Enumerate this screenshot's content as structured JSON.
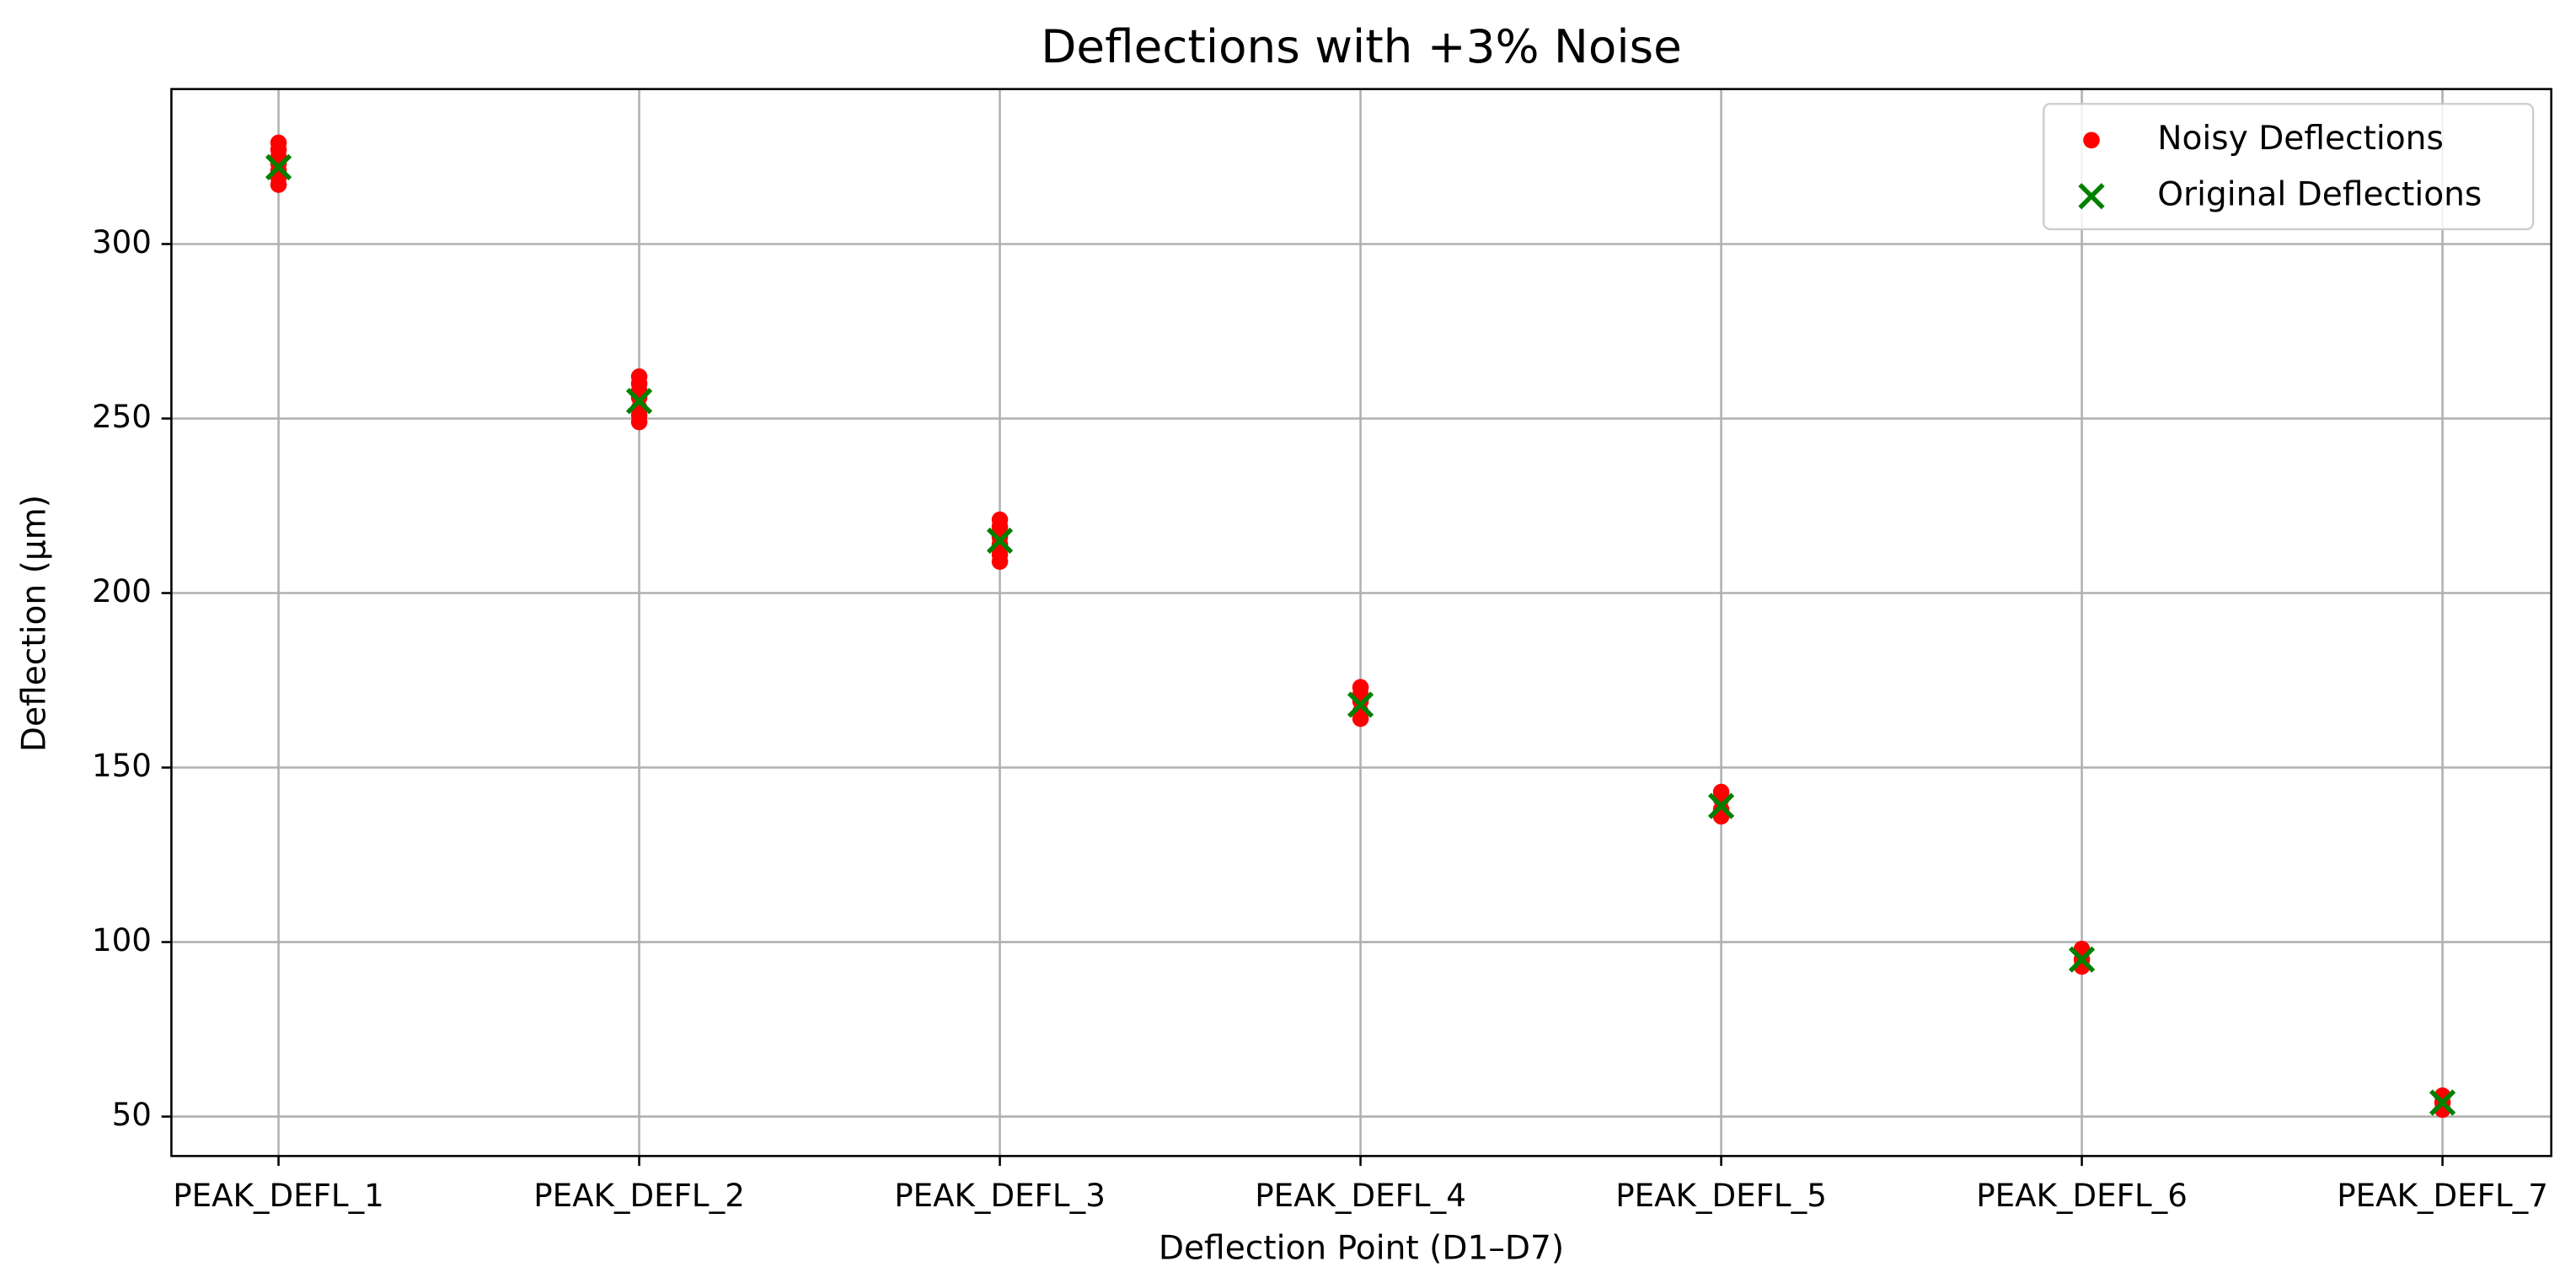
{
  "chart_data": {
    "type": "scatter",
    "title": "Deflections with +3% Noise",
    "x_label": "Deflection Point (D1–D7)",
    "y_label": "Deflection (µm)",
    "categories": [
      "PEAK_DEFL_1",
      "PEAK_DEFL_2",
      "PEAK_DEFL_3",
      "PEAK_DEFL_4",
      "PEAK_DEFL_5",
      "PEAK_DEFL_6",
      "PEAK_DEFL_7"
    ],
    "ylim": [
      38.7,
      344.4
    ],
    "yticks": [
      50,
      100,
      150,
      200,
      250,
      300
    ],
    "grid": true,
    "legend": "upper right",
    "series": [
      {
        "name": "Noisy Deflections",
        "color": "#ff0000",
        "marker": "o",
        "x": [
          "PEAK_DEFL_1",
          "PEAK_DEFL_1",
          "PEAK_DEFL_1",
          "PEAK_DEFL_1",
          "PEAK_DEFL_1",
          "PEAK_DEFL_1",
          "PEAK_DEFL_1",
          "PEAK_DEFL_2",
          "PEAK_DEFL_2",
          "PEAK_DEFL_2",
          "PEAK_DEFL_2",
          "PEAK_DEFL_2",
          "PEAK_DEFL_2",
          "PEAK_DEFL_2",
          "PEAK_DEFL_3",
          "PEAK_DEFL_3",
          "PEAK_DEFL_3",
          "PEAK_DEFL_3",
          "PEAK_DEFL_3",
          "PEAK_DEFL_3",
          "PEAK_DEFL_4",
          "PEAK_DEFL_4",
          "PEAK_DEFL_4",
          "PEAK_DEFL_4",
          "PEAK_DEFL_4",
          "PEAK_DEFL_5",
          "PEAK_DEFL_5",
          "PEAK_DEFL_5",
          "PEAK_DEFL_5",
          "PEAK_DEFL_6",
          "PEAK_DEFL_6",
          "PEAK_DEFL_6",
          "PEAK_DEFL_7",
          "PEAK_DEFL_7",
          "PEAK_DEFL_7"
        ],
        "values": [
          317,
          319,
          321,
          323,
          325,
          327,
          329,
          249,
          251,
          253,
          256,
          258,
          260,
          262,
          209,
          211,
          214,
          216,
          219,
          221,
          164,
          166,
          169,
          171,
          173,
          136,
          138,
          141,
          143,
          93,
          95,
          98,
          52,
          54,
          56
        ]
      },
      {
        "name": "Original Deflections",
        "color": "#008000",
        "marker": "x",
        "x": [
          "PEAK_DEFL_1",
          "PEAK_DEFL_2",
          "PEAK_DEFL_3",
          "PEAK_DEFL_4",
          "PEAK_DEFL_5",
          "PEAK_DEFL_6",
          "PEAK_DEFL_7"
        ],
        "values": [
          322,
          255,
          215,
          168,
          139,
          95,
          54
        ]
      }
    ]
  }
}
